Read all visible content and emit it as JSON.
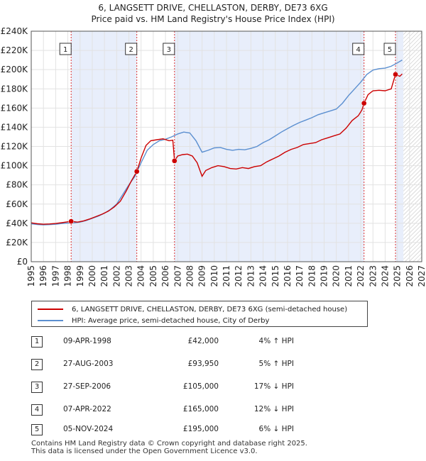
{
  "chart_data": {
    "type": "line",
    "title": "6, LANGSETT DRIVE, CHELLASTON, DERBY, DE73 6XG",
    "subtitle": "Price paid vs. HM Land Registry's House Price Index (HPI)",
    "xlim": [
      1995,
      2027
    ],
    "ylim": [
      0,
      240000
    ],
    "x_ticks": [
      "1995",
      "1996",
      "1997",
      "1998",
      "1999",
      "2000",
      "2001",
      "2002",
      "2003",
      "2004",
      "2005",
      "2006",
      "2007",
      "2008",
      "2009",
      "2010",
      "2011",
      "2012",
      "2013",
      "2014",
      "2015",
      "2016",
      "2017",
      "2018",
      "2019",
      "2020",
      "2021",
      "2022",
      "2023",
      "2024",
      "2025",
      "2026",
      "2027"
    ],
    "y_ticks": [
      {
        "value": 0,
        "label": "£0"
      },
      {
        "value": 20000,
        "label": "£20K"
      },
      {
        "value": 40000,
        "label": "£40K"
      },
      {
        "value": 60000,
        "label": "£60K"
      },
      {
        "value": 80000,
        "label": "£80K"
      },
      {
        "value": 100000,
        "label": "£100K"
      },
      {
        "value": 120000,
        "label": "£120K"
      },
      {
        "value": 140000,
        "label": "£140K"
      },
      {
        "value": 160000,
        "label": "£160K"
      },
      {
        "value": 180000,
        "label": "£180K"
      },
      {
        "value": 200000,
        "label": "£200K"
      },
      {
        "value": 220000,
        "label": "£220K"
      },
      {
        "value": 240000,
        "label": "£240K"
      }
    ],
    "shaded_periods": [
      [
        1998.27,
        2003.65
      ],
      [
        2006.74,
        2022.27
      ],
      [
        2024.85,
        2025.5
      ]
    ],
    "hatched_future_from": 2025.5,
    "series": [
      {
        "name": "6, LANGSETT DRIVE, CHELLASTON, DERBY, DE73 6XG (semi-detached house)",
        "color": "#cc0000",
        "points": [
          [
            1995.0,
            40500
          ],
          [
            1995.5,
            39500
          ],
          [
            1996.0,
            39000
          ],
          [
            1996.5,
            39300
          ],
          [
            1997.0,
            39800
          ],
          [
            1997.5,
            40600
          ],
          [
            1998.27,
            42000
          ],
          [
            1998.8,
            41200
          ],
          [
            1999.3,
            42500
          ],
          [
            1999.8,
            44500
          ],
          [
            2000.3,
            47000
          ],
          [
            2000.8,
            49500
          ],
          [
            2001.3,
            52500
          ],
          [
            2001.8,
            57000
          ],
          [
            2002.3,
            63000
          ],
          [
            2002.8,
            74000
          ],
          [
            2003.2,
            84000
          ],
          [
            2003.65,
            93950
          ],
          [
            2004.0,
            108000
          ],
          [
            2004.4,
            121000
          ],
          [
            2004.8,
            126000
          ],
          [
            2005.3,
            127000
          ],
          [
            2005.8,
            128000
          ],
          [
            2006.3,
            126000
          ],
          [
            2006.6,
            126500
          ],
          [
            2006.74,
            105000
          ],
          [
            2007.0,
            110000
          ],
          [
            2007.4,
            111500
          ],
          [
            2007.8,
            112000
          ],
          [
            2008.2,
            110000
          ],
          [
            2008.6,
            103000
          ],
          [
            2009.0,
            89000
          ],
          [
            2009.3,
            95000
          ],
          [
            2009.8,
            98000
          ],
          [
            2010.3,
            100000
          ],
          [
            2010.8,
            99000
          ],
          [
            2011.3,
            97000
          ],
          [
            2011.8,
            96500
          ],
          [
            2012.3,
            98000
          ],
          [
            2012.8,
            97000
          ],
          [
            2013.3,
            99000
          ],
          [
            2013.8,
            100000
          ],
          [
            2014.3,
            104000
          ],
          [
            2014.8,
            107000
          ],
          [
            2015.3,
            110000
          ],
          [
            2015.8,
            114000
          ],
          [
            2016.3,
            117000
          ],
          [
            2016.8,
            119000
          ],
          [
            2017.3,
            122000
          ],
          [
            2017.8,
            123000
          ],
          [
            2018.3,
            124000
          ],
          [
            2018.8,
            127000
          ],
          [
            2019.3,
            129000
          ],
          [
            2019.8,
            131000
          ],
          [
            2020.3,
            133000
          ],
          [
            2020.8,
            139000
          ],
          [
            2021.3,
            147000
          ],
          [
            2021.8,
            152000
          ],
          [
            2022.1,
            158000
          ],
          [
            2022.27,
            165000
          ],
          [
            2022.6,
            174000
          ],
          [
            2023.0,
            178000
          ],
          [
            2023.5,
            178500
          ],
          [
            2024.0,
            178000
          ],
          [
            2024.5,
            180000
          ],
          [
            2024.85,
            195000
          ],
          [
            2025.2,
            193000
          ],
          [
            2025.4,
            195500
          ]
        ]
      },
      {
        "name": "HPI: Average price, semi-detached house, City of Derby",
        "color": "#5b8fd0",
        "points": [
          [
            1995.0,
            39500
          ],
          [
            1995.5,
            38800
          ],
          [
            1996.0,
            38400
          ],
          [
            1996.5,
            38600
          ],
          [
            1997.0,
            39000
          ],
          [
            1997.5,
            39700
          ],
          [
            1998.0,
            40200
          ],
          [
            1998.5,
            40400
          ],
          [
            1999.0,
            41200
          ],
          [
            1999.5,
            42800
          ],
          [
            2000.0,
            45200
          ],
          [
            2000.5,
            47500
          ],
          [
            2001.0,
            50500
          ],
          [
            2001.5,
            54500
          ],
          [
            2002.0,
            60000
          ],
          [
            2002.5,
            70000
          ],
          [
            2003.0,
            80000
          ],
          [
            2003.5,
            89000
          ],
          [
            2004.0,
            103000
          ],
          [
            2004.5,
            116000
          ],
          [
            2005.0,
            122000
          ],
          [
            2005.5,
            126000
          ],
          [
            2006.0,
            127500
          ],
          [
            2006.5,
            130000
          ],
          [
            2007.0,
            133000
          ],
          [
            2007.5,
            135000
          ],
          [
            2008.0,
            134000
          ],
          [
            2008.5,
            126000
          ],
          [
            2009.0,
            114000
          ],
          [
            2009.5,
            116000
          ],
          [
            2010.0,
            118500
          ],
          [
            2010.5,
            119000
          ],
          [
            2011.0,
            117000
          ],
          [
            2011.5,
            116000
          ],
          [
            2012.0,
            117000
          ],
          [
            2012.5,
            116500
          ],
          [
            2013.0,
            118000
          ],
          [
            2013.5,
            120000
          ],
          [
            2014.0,
            124000
          ],
          [
            2014.5,
            127000
          ],
          [
            2015.0,
            131000
          ],
          [
            2015.5,
            135000
          ],
          [
            2016.0,
            138500
          ],
          [
            2016.5,
            142000
          ],
          [
            2017.0,
            145000
          ],
          [
            2017.5,
            147500
          ],
          [
            2018.0,
            150000
          ],
          [
            2018.5,
            153000
          ],
          [
            2019.0,
            155000
          ],
          [
            2019.5,
            157000
          ],
          [
            2020.0,
            159000
          ],
          [
            2020.5,
            165000
          ],
          [
            2021.0,
            173000
          ],
          [
            2021.5,
            180000
          ],
          [
            2022.0,
            187000
          ],
          [
            2022.5,
            195000
          ],
          [
            2023.0,
            199500
          ],
          [
            2023.5,
            201000
          ],
          [
            2024.0,
            201500
          ],
          [
            2024.5,
            203500
          ],
          [
            2025.0,
            207000
          ],
          [
            2025.4,
            210000
          ]
        ]
      }
    ],
    "sale_markers": [
      {
        "label": "1",
        "x": 1998.27,
        "y": 42000
      },
      {
        "label": "2",
        "x": 2003.65,
        "y": 93950
      },
      {
        "label": "3",
        "x": 2006.74,
        "y": 105000
      },
      {
        "label": "4",
        "x": 2022.27,
        "y": 165000
      },
      {
        "label": "5",
        "x": 2024.85,
        "y": 195000
      }
    ]
  },
  "legend": {
    "items": [
      {
        "label": "6, LANGSETT DRIVE, CHELLASTON, DERBY, DE73 6XG (semi-detached house)",
        "color": "#cc0000"
      },
      {
        "label": "HPI: Average price, semi-detached house, City of Derby",
        "color": "#5b8fd0"
      }
    ]
  },
  "sales": [
    {
      "num": "1",
      "date": "09-APR-1998",
      "price": "£42,000",
      "hpi": "4% ↑ HPI"
    },
    {
      "num": "2",
      "date": "27-AUG-2003",
      "price": "£93,950",
      "hpi": "5% ↑ HPI"
    },
    {
      "num": "3",
      "date": "27-SEP-2006",
      "price": "£105,000",
      "hpi": "17% ↓ HPI"
    },
    {
      "num": "4",
      "date": "07-APR-2022",
      "price": "£165,000",
      "hpi": "12% ↓ HPI"
    },
    {
      "num": "5",
      "date": "05-NOV-2024",
      "price": "£195,000",
      "hpi": "6% ↓ HPI"
    }
  ],
  "footer": {
    "line1": "Contains HM Land Registry data © Crown copyright and database right 2025.",
    "line2": "This data is licensed under the Open Government Licence v3.0."
  }
}
